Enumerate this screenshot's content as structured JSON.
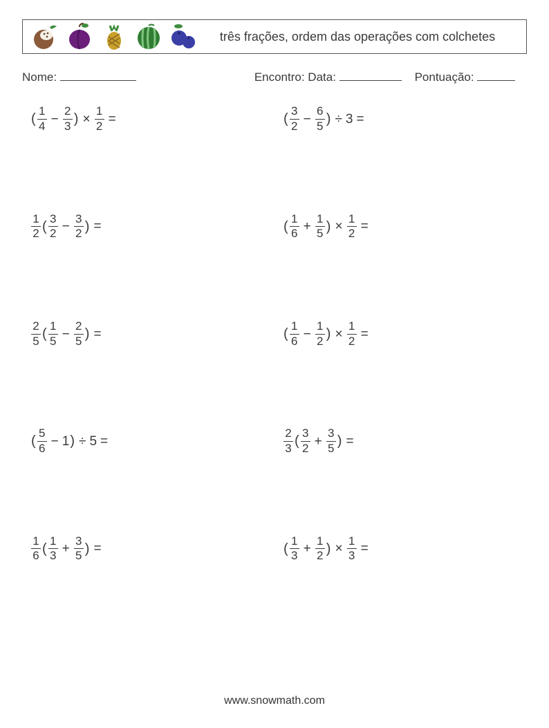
{
  "header": {
    "title": "três frações, ordem das operações com colchetes",
    "fruits": [
      "coconut",
      "plum",
      "pineapple",
      "watermelon",
      "blueberries"
    ]
  },
  "meta": {
    "name_label": "Nome:",
    "date_label": "Encontro: Data:",
    "score_label": "Pontuação:"
  },
  "footer": "www.snowmath.com",
  "problems": [
    {
      "tokens": [
        {
          "t": "paren",
          "v": "("
        },
        {
          "t": "frac",
          "n": "1",
          "d": "4"
        },
        {
          "t": "op",
          "v": "−"
        },
        {
          "t": "frac",
          "n": "2",
          "d": "3"
        },
        {
          "t": "paren",
          "v": ")"
        },
        {
          "t": "op",
          "v": "×"
        },
        {
          "t": "frac",
          "n": "1",
          "d": "2"
        },
        {
          "t": "eq",
          "v": "="
        }
      ]
    },
    {
      "tokens": [
        {
          "t": "paren",
          "v": "("
        },
        {
          "t": "frac",
          "n": "3",
          "d": "2"
        },
        {
          "t": "op",
          "v": "−"
        },
        {
          "t": "frac",
          "n": "6",
          "d": "5"
        },
        {
          "t": "paren",
          "v": ")"
        },
        {
          "t": "op",
          "v": "÷"
        },
        {
          "t": "num",
          "v": "3"
        },
        {
          "t": "eq",
          "v": "="
        }
      ]
    },
    {
      "tokens": [
        {
          "t": "frac",
          "n": "1",
          "d": "2"
        },
        {
          "t": "paren",
          "v": "("
        },
        {
          "t": "frac",
          "n": "3",
          "d": "2"
        },
        {
          "t": "op",
          "v": "−"
        },
        {
          "t": "frac",
          "n": "3",
          "d": "2"
        },
        {
          "t": "paren",
          "v": ")"
        },
        {
          "t": "eq",
          "v": "="
        }
      ]
    },
    {
      "tokens": [
        {
          "t": "paren",
          "v": "("
        },
        {
          "t": "frac",
          "n": "1",
          "d": "6"
        },
        {
          "t": "op",
          "v": "+"
        },
        {
          "t": "frac",
          "n": "1",
          "d": "5"
        },
        {
          "t": "paren",
          "v": ")"
        },
        {
          "t": "op",
          "v": "×"
        },
        {
          "t": "frac",
          "n": "1",
          "d": "2"
        },
        {
          "t": "eq",
          "v": "="
        }
      ]
    },
    {
      "tokens": [
        {
          "t": "frac",
          "n": "2",
          "d": "5"
        },
        {
          "t": "paren",
          "v": "("
        },
        {
          "t": "frac",
          "n": "1",
          "d": "5"
        },
        {
          "t": "op",
          "v": "−"
        },
        {
          "t": "frac",
          "n": "2",
          "d": "5"
        },
        {
          "t": "paren",
          "v": ")"
        },
        {
          "t": "eq",
          "v": "="
        }
      ]
    },
    {
      "tokens": [
        {
          "t": "paren",
          "v": "("
        },
        {
          "t": "frac",
          "n": "1",
          "d": "6"
        },
        {
          "t": "op",
          "v": "−"
        },
        {
          "t": "frac",
          "n": "1",
          "d": "2"
        },
        {
          "t": "paren",
          "v": ")"
        },
        {
          "t": "op",
          "v": "×"
        },
        {
          "t": "frac",
          "n": "1",
          "d": "2"
        },
        {
          "t": "eq",
          "v": "="
        }
      ]
    },
    {
      "tokens": [
        {
          "t": "paren",
          "v": "("
        },
        {
          "t": "frac",
          "n": "5",
          "d": "6"
        },
        {
          "t": "op",
          "v": "−"
        },
        {
          "t": "num",
          "v": "1"
        },
        {
          "t": "paren",
          "v": ")"
        },
        {
          "t": "op",
          "v": "÷"
        },
        {
          "t": "num",
          "v": "5"
        },
        {
          "t": "eq",
          "v": "="
        }
      ]
    },
    {
      "tokens": [
        {
          "t": "frac",
          "n": "2",
          "d": "3"
        },
        {
          "t": "paren",
          "v": "("
        },
        {
          "t": "frac",
          "n": "3",
          "d": "2"
        },
        {
          "t": "op",
          "v": "+"
        },
        {
          "t": "frac",
          "n": "3",
          "d": "5"
        },
        {
          "t": "paren",
          "v": ")"
        },
        {
          "t": "eq",
          "v": "="
        }
      ]
    },
    {
      "tokens": [
        {
          "t": "frac",
          "n": "1",
          "d": "6"
        },
        {
          "t": "paren",
          "v": "("
        },
        {
          "t": "frac",
          "n": "1",
          "d": "3"
        },
        {
          "t": "op",
          "v": "+"
        },
        {
          "t": "frac",
          "n": "3",
          "d": "5"
        },
        {
          "t": "paren",
          "v": ")"
        },
        {
          "t": "eq",
          "v": "="
        }
      ]
    },
    {
      "tokens": [
        {
          "t": "paren",
          "v": "("
        },
        {
          "t": "frac",
          "n": "1",
          "d": "3"
        },
        {
          "t": "op",
          "v": "+"
        },
        {
          "t": "frac",
          "n": "1",
          "d": "2"
        },
        {
          "t": "paren",
          "v": ")"
        },
        {
          "t": "op",
          "v": "×"
        },
        {
          "t": "frac",
          "n": "1",
          "d": "3"
        },
        {
          "t": "eq",
          "v": "="
        }
      ]
    }
  ],
  "fruit_svg_colors": {
    "coconut": {
      "shell": "#8a5a3b",
      "inner": "#f5efe6",
      "leaf": "#3f8d3f"
    },
    "plum": {
      "body": "#6b1e7a",
      "leaf": "#3f8d3f"
    },
    "pineapple": {
      "body": "#caa02b",
      "leaf": "#3f8d3f",
      "scale": "#8a6a1e"
    },
    "watermelon": {
      "rind": "#2f7d32",
      "stripe": "#7fc47f"
    },
    "blueberries": {
      "body": "#3a3fa5",
      "leaf": "#3f8d3f"
    }
  }
}
